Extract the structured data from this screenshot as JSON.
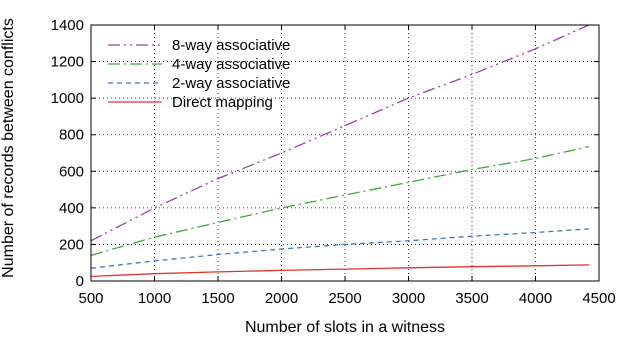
{
  "chart_data": {
    "type": "line",
    "title": "",
    "xlabel": "Number of slots in a witness",
    "ylabel": "Number of records between conflicts",
    "xlim": [
      500,
      4500
    ],
    "ylim": [
      0,
      1400
    ],
    "xticks": [
      500,
      1000,
      1500,
      2000,
      2500,
      3000,
      3500,
      4000,
      4500
    ],
    "yticks": [
      0,
      200,
      400,
      600,
      800,
      1000,
      1200,
      1400
    ],
    "grid": true,
    "legend_position": "top-left",
    "x": [
      500,
      1000,
      1500,
      2000,
      2500,
      3000,
      3500,
      4000,
      4420
    ],
    "series": [
      {
        "name": "8-way associative",
        "color": "#9b3fa8",
        "dash": "dashdotdot",
        "values": [
          220,
          400,
          560,
          700,
          850,
          1000,
          1130,
          1270,
          1400
        ]
      },
      {
        "name": "4-way associative",
        "color": "#3fa83a",
        "dash": "dashdot",
        "values": [
          140,
          240,
          320,
          400,
          470,
          540,
          610,
          670,
          735
        ]
      },
      {
        "name": "2-way associative",
        "color": "#3c78c8",
        "dash": "dash",
        "values": [
          70,
          110,
          145,
          175,
          200,
          220,
          245,
          265,
          285
        ]
      },
      {
        "name": "Direct mapping",
        "color": "#e0332b",
        "dash": "solid",
        "values": [
          25,
          40,
          50,
          58,
          65,
          72,
          78,
          83,
          88
        ]
      }
    ]
  }
}
